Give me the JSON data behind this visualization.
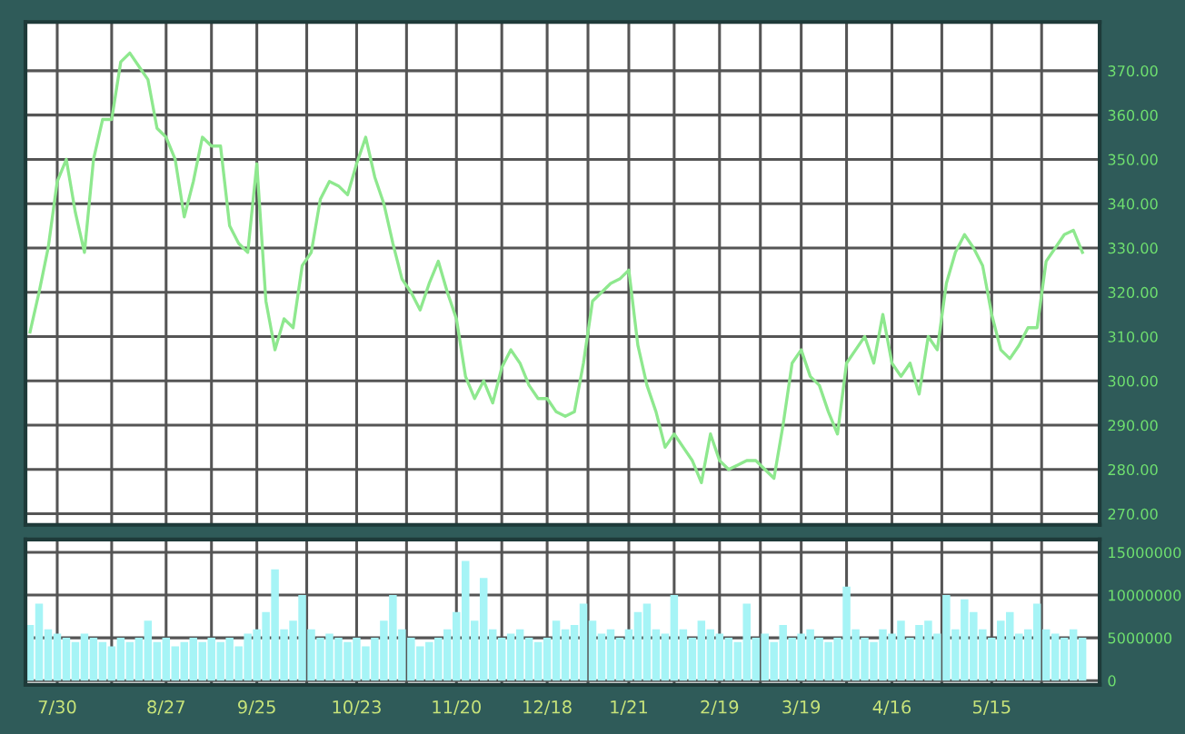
{
  "chart_data": [
    {
      "type": "line",
      "tick_labels": "y",
      "grid": true,
      "marker": "none",
      "line_style": "solid",
      "categories": [
        null,
        null,
        null,
        null,
        null,
        null,
        null,
        null,
        null,
        null,
        null,
        null,
        null,
        null,
        null,
        null,
        null,
        null,
        null,
        null,
        null,
        null,
        null,
        null,
        null,
        null,
        null,
        null,
        null,
        null,
        null,
        null,
        null,
        null,
        null,
        null,
        null,
        null,
        null,
        null,
        null,
        null,
        null,
        null,
        null,
        null,
        null,
        null,
        null,
        null,
        null,
        null,
        null,
        null,
        null,
        null,
        null,
        null,
        null,
        null,
        null,
        null,
        null,
        null,
        null,
        null,
        null,
        null,
        null,
        null,
        null,
        null,
        null,
        null,
        null,
        null,
        null,
        null,
        null,
        null,
        null,
        null,
        null,
        null,
        null,
        null,
        null,
        null,
        null,
        null,
        null,
        null,
        null,
        null,
        null,
        null,
        null,
        null,
        null,
        null,
        null,
        null,
        null,
        null,
        null,
        null,
        null,
        null,
        null,
        null,
        null,
        null,
        null,
        null,
        null,
        null,
        null
      ],
      "ylim": [
        267.5,
        381
      ],
      "yticks": [
        {
          "value": 270,
          "label": "270.00"
        },
        {
          "value": 280,
          "label": "280.00"
        },
        {
          "value": 290,
          "label": "290.00"
        },
        {
          "value": 300,
          "label": "300.00"
        },
        {
          "value": 310,
          "label": "310.00"
        },
        {
          "value": 320,
          "label": "320.00"
        },
        {
          "value": 330,
          "label": "330.00"
        },
        {
          "value": 340,
          "label": "340.00"
        },
        {
          "value": 350,
          "label": "350.00"
        },
        {
          "value": 360,
          "label": "360.00"
        },
        {
          "value": 370,
          "label": "370.00"
        }
      ],
      "series": [
        {
          "color": "#8ee88e",
          "values": [
            311,
            320,
            330,
            345,
            350,
            338,
            329,
            350,
            359,
            359,
            372,
            374,
            371,
            368,
            357,
            355,
            350,
            337,
            345,
            355,
            353,
            353,
            335,
            331,
            329,
            349,
            318,
            307,
            314,
            312,
            326,
            329,
            341,
            345,
            344,
            342,
            349,
            355,
            346,
            340,
            331,
            323,
            320,
            316,
            322,
            327,
            320,
            314,
            301,
            296,
            300,
            295,
            303,
            307,
            304,
            299,
            296,
            296,
            293,
            292,
            293,
            304,
            318,
            320,
            322,
            323,
            325,
            308,
            299,
            293,
            285,
            288,
            285,
            282,
            277,
            288,
            282,
            280,
            281,
            282,
            282,
            280,
            278,
            290,
            304,
            307,
            301,
            299,
            293,
            288,
            304,
            307,
            310,
            304,
            315,
            304,
            301,
            304,
            297,
            310,
            307,
            322,
            329,
            333,
            330,
            326,
            315,
            307,
            305,
            308,
            312,
            312,
            327,
            330,
            333,
            334,
            329
          ]
        }
      ]
    },
    {
      "type": "bar",
      "grid": true,
      "categories": [
        null,
        null,
        null,
        "7/30",
        null,
        null,
        null,
        null,
        null,
        null,
        null,
        null,
        null,
        null,
        null,
        "8/27",
        null,
        null,
        null,
        null,
        null,
        null,
        null,
        null,
        null,
        "9/25",
        null,
        null,
        null,
        null,
        null,
        null,
        null,
        null,
        null,
        null,
        "10/23",
        null,
        null,
        null,
        null,
        null,
        null,
        null,
        null,
        null,
        null,
        "11/20",
        null,
        null,
        null,
        null,
        null,
        null,
        null,
        null,
        null,
        "12/18",
        null,
        null,
        null,
        null,
        null,
        null,
        null,
        null,
        "1/21",
        null,
        null,
        null,
        null,
        null,
        null,
        null,
        null,
        null,
        "2/19",
        null,
        null,
        null,
        null,
        null,
        null,
        null,
        null,
        "3/19",
        null,
        null,
        null,
        null,
        null,
        null,
        null,
        null,
        null,
        "4/16",
        null,
        null,
        null,
        null,
        null,
        null,
        null,
        null,
        null,
        null,
        "5/15",
        null,
        null,
        null,
        null,
        null,
        null,
        null,
        null,
        null,
        null
      ],
      "ylim": [
        -500000,
        16500000
      ],
      "yticks": [
        0,
        5000000,
        10000000,
        15000000
      ],
      "series": [
        {
          "color": "#a6f4f6",
          "values": [
            6500000,
            9000000,
            6000000,
            5500000,
            5000000,
            4500000,
            5500000,
            5000000,
            4500000,
            4000000,
            5000000,
            4500000,
            5000000,
            7000000,
            4500000,
            5000000,
            4000000,
            4500000,
            5000000,
            4500000,
            5000000,
            4500000,
            5000000,
            4000000,
            5500000,
            6000000,
            8000000,
            13000000,
            6000000,
            7000000,
            10000000,
            6000000,
            5000000,
            5500000,
            5000000,
            4500000,
            5000000,
            4000000,
            5000000,
            7000000,
            10000000,
            6000000,
            5000000,
            4000000,
            4500000,
            5000000,
            6000000,
            8000000,
            14000000,
            7000000,
            12000000,
            6000000,
            5000000,
            5500000,
            6000000,
            5000000,
            4500000,
            5000000,
            7000000,
            6000000,
            6500000,
            9000000,
            7000000,
            5500000,
            6000000,
            5000000,
            6000000,
            8000000,
            9000000,
            6000000,
            5500000,
            10000000,
            6000000,
            5000000,
            7000000,
            6000000,
            5500000,
            5000000,
            4500000,
            9000000,
            5000000,
            5500000,
            4500000,
            6500000,
            5000000,
            5500000,
            6000000,
            5000000,
            4500000,
            5000000,
            11000000,
            6000000,
            5000000,
            4500000,
            6000000,
            5500000,
            7000000,
            5000000,
            6500000,
            7000000,
            5500000,
            10000000,
            6000000,
            9500000,
            8000000,
            6000000,
            5000000,
            7000000,
            8000000,
            5500000,
            6000000,
            9000000,
            6000000,
            5500000,
            5000000,
            6000000,
            5000000
          ]
        }
      ]
    }
  ]
}
